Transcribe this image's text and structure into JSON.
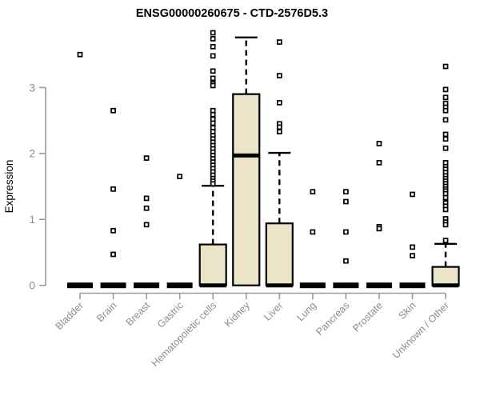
{
  "chart_data": {
    "type": "box",
    "title": "ENSG00000260675 - CTD-2576D5.3",
    "ylabel": "Expression",
    "yticks": [
      0,
      1,
      2,
      3
    ],
    "ylim": [
      0,
      3.9
    ],
    "grid": false,
    "legend": "none",
    "colors": {
      "box_fill": "#ece4c8",
      "box_stroke": "#000000",
      "median": "#000000",
      "whisker": "#000000",
      "axis_line": "#999999",
      "tick_text": "#8c8c8c",
      "title_text": "#000000",
      "background": "#ffffff"
    },
    "categories": [
      "Bladder",
      "Brain",
      "Breast",
      "Gastric",
      "Hematopoietic cells",
      "Kidney",
      "Liver",
      "Lung",
      "Pancreas",
      "Prostate",
      "Skin",
      "Unknown / Other"
    ],
    "boxes": [
      {
        "label": "Bladder",
        "q1": 0,
        "median": 0,
        "q3": 0,
        "whisker_low": 0,
        "whisker_high": 0,
        "outliers": [
          3.5
        ]
      },
      {
        "label": "Brain",
        "q1": 0,
        "median": 0,
        "q3": 0,
        "whisker_low": 0,
        "whisker_high": 0,
        "outliers": [
          2.65,
          1.46,
          0.83,
          0.47
        ]
      },
      {
        "label": "Breast",
        "q1": 0,
        "median": 0,
        "q3": 0,
        "whisker_low": 0,
        "whisker_high": 0,
        "outliers": [
          1.93,
          1.32,
          1.17,
          0.92
        ]
      },
      {
        "label": "Gastric",
        "q1": 0,
        "median": 0,
        "q3": 0,
        "whisker_low": 0,
        "whisker_high": 0,
        "outliers": [
          1.65
        ]
      },
      {
        "label": "Hematopoietic cells",
        "q1": 0,
        "median": 0,
        "q3": 0.62,
        "whisker_low": 0,
        "whisker_high": 1.51,
        "outliers": [
          3.83,
          3.74,
          3.62,
          3.48,
          3.25,
          3.14,
          3.06,
          3.03,
          2.65,
          2.59,
          2.52,
          2.46,
          2.39,
          2.33,
          2.27,
          2.22,
          2.17,
          2.12,
          2.07,
          2.02,
          1.97,
          1.92,
          1.87,
          1.82,
          1.77,
          1.72,
          1.67,
          1.62,
          1.58,
          1.54
        ]
      },
      {
        "label": "Kidney",
        "q1": 0,
        "median": 1.97,
        "q3": 2.9,
        "whisker_low": 0,
        "whisker_high": 3.76,
        "outliers": []
      },
      {
        "label": "Liver",
        "q1": 0,
        "median": 0,
        "q3": 0.94,
        "whisker_low": 0,
        "whisker_high": 2.01,
        "outliers": [
          3.69,
          3.18,
          2.77,
          2.45,
          2.4,
          2.33
        ]
      },
      {
        "label": "Lung",
        "q1": 0,
        "median": 0,
        "q3": 0,
        "whisker_low": 0,
        "whisker_high": 0,
        "outliers": [
          1.42,
          0.81
        ]
      },
      {
        "label": "Pancreas",
        "q1": 0,
        "median": 0,
        "q3": 0,
        "whisker_low": 0,
        "whisker_high": 0,
        "outliers": [
          1.42,
          1.27,
          0.81,
          0.37
        ]
      },
      {
        "label": "Prostate",
        "q1": 0,
        "median": 0,
        "q3": 0,
        "whisker_low": 0,
        "whisker_high": 0,
        "outliers": [
          2.15,
          1.86,
          0.89,
          0.86
        ]
      },
      {
        "label": "Skin",
        "q1": 0,
        "median": 0,
        "q3": 0,
        "whisker_low": 0,
        "whisker_high": 0,
        "outliers": [
          1.38,
          0.58,
          0.45
        ]
      },
      {
        "label": "Unknown / Other",
        "q1": 0,
        "median": 0,
        "q3": 0.28,
        "whisker_low": 0,
        "whisker_high": 0.63,
        "outliers": [
          3.32,
          2.97,
          2.85,
          2.76,
          2.7,
          2.65,
          2.51,
          2.29,
          2.22,
          2.08,
          1.86,
          1.8,
          1.76,
          1.71,
          1.66,
          1.62,
          1.58,
          1.54,
          1.5,
          1.46,
          1.43,
          1.39,
          1.33,
          1.25,
          1.2,
          1.15,
          1.01,
          0.96,
          0.92,
          0.68
        ]
      }
    ]
  }
}
